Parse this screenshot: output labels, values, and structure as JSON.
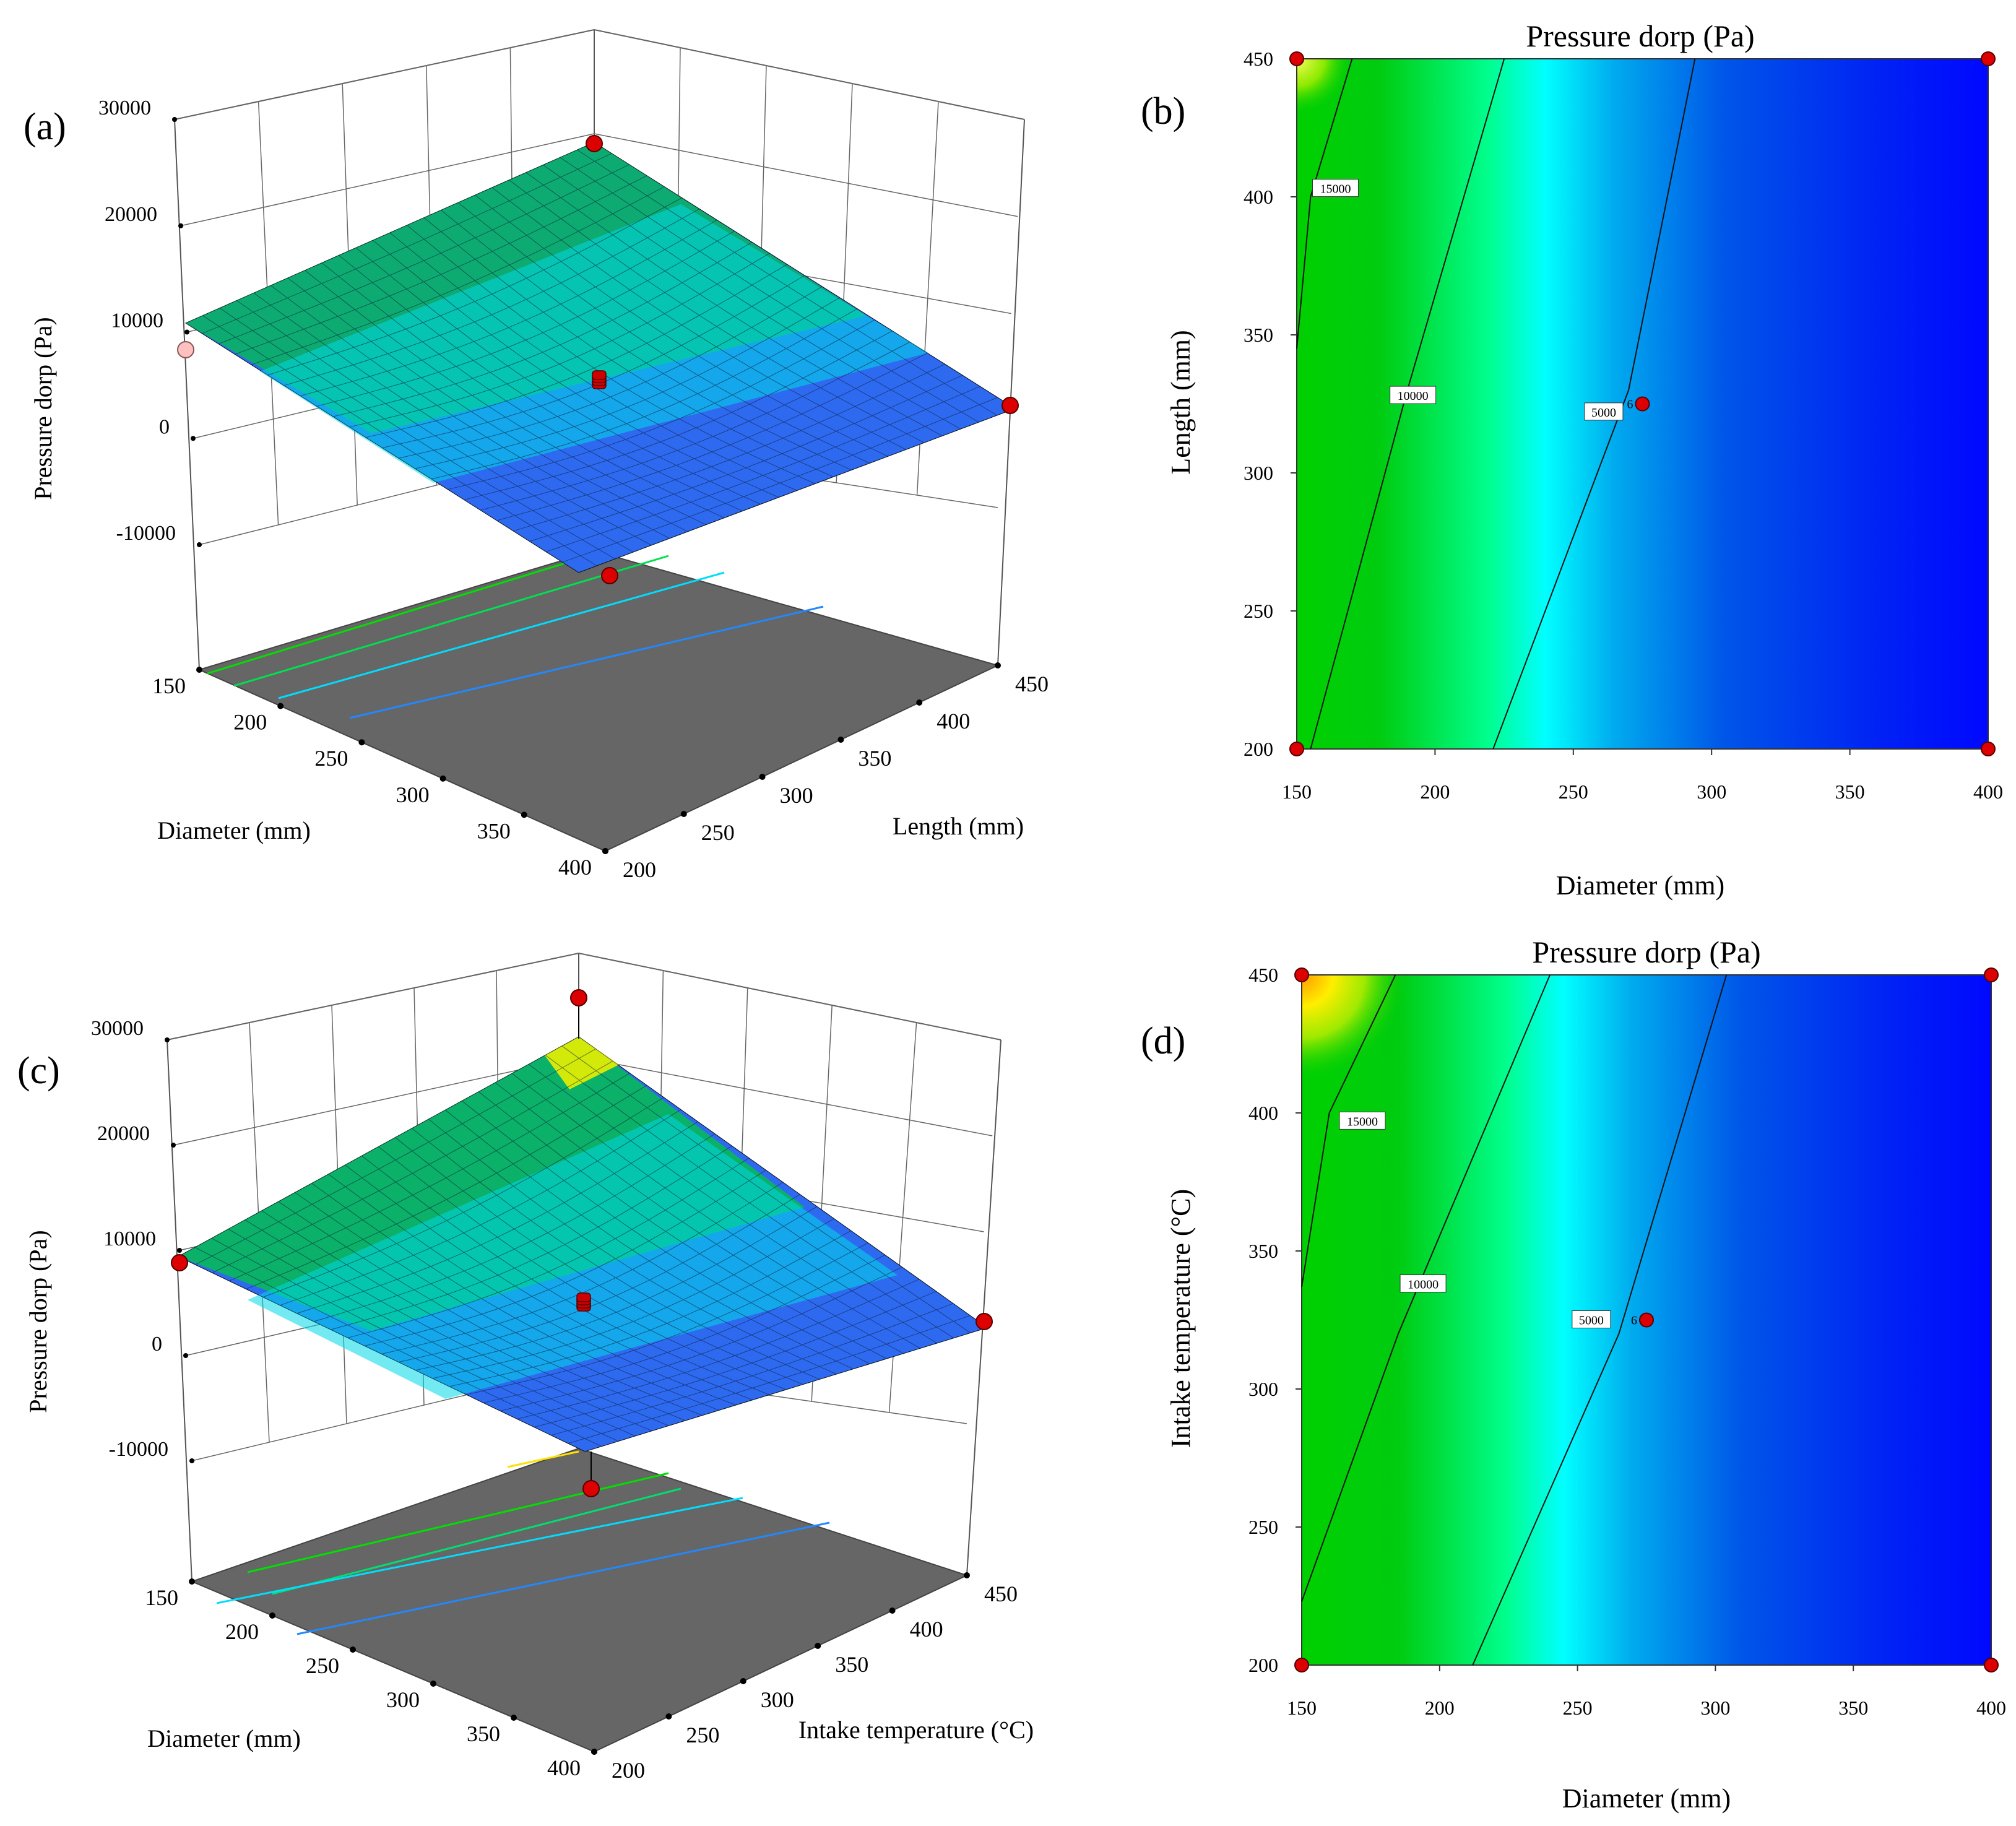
{
  "figure": {
    "panels": [
      "(a)",
      "(b)",
      "(c)",
      "(d)"
    ]
  },
  "chart_data": [
    {
      "panel": "(a)",
      "type": "surface3d",
      "zlabel": "Pressure dorp (Pa)",
      "xlabel": "Diameter (mm)",
      "ylabel": "Length (mm)",
      "x_ticks": [
        150,
        200,
        250,
        300,
        350,
        400
      ],
      "y_ticks": [
        200,
        250,
        300,
        350,
        400,
        450
      ],
      "z_ticks": [
        -10000,
        0,
        10000,
        20000,
        30000
      ],
      "xlim": [
        150,
        400
      ],
      "ylim": [
        200,
        450
      ],
      "zlim": [
        -10000,
        30000
      ],
      "surface_corners": [
        {
          "diameter": 150,
          "length": 200,
          "pressure_drop": 8000
        },
        {
          "diameter": 150,
          "length": 450,
          "pressure_drop": 26000
        },
        {
          "diameter": 400,
          "length": 450,
          "pressure_drop": 2500
        },
        {
          "diameter": 400,
          "length": 200,
          "pressure_drop": -8000
        }
      ],
      "design_points": [
        {
          "diameter": 150,
          "length": 450,
          "pressure_drop": 27000,
          "above_surface": true
        },
        {
          "diameter": 150,
          "length": 200,
          "pressure_drop": 7000,
          "above_surface": false
        },
        {
          "diameter": 400,
          "length": 450,
          "pressure_drop": 2000,
          "above_surface": true
        },
        {
          "diameter": 275,
          "length": 325,
          "pressure_drop": 3500,
          "above_surface": true
        },
        {
          "diameter": 400,
          "length": 200,
          "pressure_drop": -12000,
          "above_surface": false
        }
      ],
      "colors": {
        "low": "#0000ff",
        "mid": "#00ffff",
        "high": "#00dd00",
        "max": "#ffee00",
        "floor": "#666666"
      }
    },
    {
      "panel": "(b)",
      "type": "contour",
      "title": "Pressure dorp (Pa)",
      "xlabel": "Diameter (mm)",
      "ylabel": "Length (mm)",
      "x_ticks": [
        150,
        200,
        250,
        300,
        350,
        400
      ],
      "y_ticks": [
        200,
        250,
        300,
        350,
        400,
        450
      ],
      "xlim": [
        150,
        400
      ],
      "ylim": [
        200,
        450
      ],
      "contours": [
        {
          "level": "15000",
          "points": [
            [
              150,
              345
            ],
            [
              155,
              400
            ],
            [
              170,
              450
            ]
          ]
        },
        {
          "level": "10000",
          "points": [
            [
              155,
              200
            ],
            [
              190,
              330
            ],
            [
              225,
              450
            ]
          ]
        },
        {
          "level": "5000",
          "points": [
            [
              221,
              200
            ],
            [
              270,
              330
            ],
            [
              294,
              450
            ]
          ]
        }
      ],
      "contour_labels": [
        {
          "text": "15000",
          "x": 164,
          "y": 403
        },
        {
          "text": "10000",
          "x": 192,
          "y": 328
        },
        {
          "text": "5000",
          "x": 261,
          "y": 322
        }
      ],
      "center_point": {
        "diameter": 275,
        "length": 325,
        "replicates": "6"
      },
      "corner_points": [
        [
          150,
          200
        ],
        [
          150,
          450
        ],
        [
          400,
          200
        ],
        [
          400,
          450
        ]
      ],
      "colors": {
        "low": "#0000ff",
        "mid": "#00ffff",
        "high": "#00cc00",
        "max": "#ffff00"
      }
    },
    {
      "panel": "(c)",
      "type": "surface3d",
      "zlabel": "Pressure dorp (Pa)",
      "xlabel": "Diameter (mm)",
      "ylabel": "Intake temperature (°C)",
      "x_ticks": [
        150,
        200,
        250,
        300,
        350,
        400
      ],
      "y_ticks": [
        200,
        250,
        300,
        350,
        400,
        450
      ],
      "z_ticks": [
        -10000,
        0,
        10000,
        20000,
        30000
      ],
      "xlim": [
        150,
        400
      ],
      "ylim": [
        200,
        450
      ],
      "zlim": [
        -10000,
        30000
      ],
      "surface_corners": [
        {
          "diameter": 150,
          "intake_temperature": 200,
          "pressure_drop": 8000
        },
        {
          "diameter": 150,
          "intake_temperature": 450,
          "pressure_drop": 28000
        },
        {
          "diameter": 400,
          "intake_temperature": 450,
          "pressure_drop": 0
        },
        {
          "diameter": 400,
          "intake_temperature": 200,
          "pressure_drop": -8000
        }
      ],
      "design_points": [
        {
          "diameter": 150,
          "intake_temperature": 450,
          "pressure_drop": 33000,
          "above_surface": true
        },
        {
          "diameter": 150,
          "intake_temperature": 200,
          "pressure_drop": 7000,
          "above_surface": true
        },
        {
          "diameter": 400,
          "intake_temperature": 450,
          "pressure_drop": 1000,
          "above_surface": true
        },
        {
          "diameter": 275,
          "intake_temperature": 325,
          "pressure_drop": 3500,
          "above_surface": true
        },
        {
          "diameter": 400,
          "intake_temperature": 200,
          "pressure_drop": -12000,
          "above_surface": false
        }
      ],
      "colors": {
        "low": "#0000ff",
        "mid": "#00ffff",
        "high": "#00dd00",
        "max": "#ffee00",
        "floor": "#666666"
      }
    },
    {
      "panel": "(d)",
      "type": "contour",
      "title": "Pressure dorp (Pa)",
      "xlabel": "Diameter (mm)",
      "ylabel": "Intake temperature (°C)",
      "x_ticks": [
        150,
        200,
        250,
        300,
        350,
        400
      ],
      "y_ticks": [
        200,
        250,
        300,
        350,
        400,
        450
      ],
      "xlim": [
        150,
        400
      ],
      "ylim": [
        200,
        450
      ],
      "contours": [
        {
          "level": "15000",
          "points": [
            [
              150,
              337
            ],
            [
              160,
              400
            ],
            [
              184,
              450
            ]
          ]
        },
        {
          "level": "10000",
          "points": [
            [
              150,
              223
            ],
            [
              185,
              320
            ],
            [
              240,
              450
            ]
          ]
        },
        {
          "level": "5000",
          "points": [
            [
              212,
              200
            ],
            [
              265,
              320
            ],
            [
              304,
              450
            ]
          ]
        }
      ],
      "contour_labels": [
        {
          "text": "15000",
          "x": 172,
          "y": 397
        },
        {
          "text": "10000",
          "x": 194,
          "y": 338
        },
        {
          "text": "5000",
          "x": 255,
          "y": 325
        }
      ],
      "center_point": {
        "diameter": 275,
        "intake_temperature": 325,
        "replicates": "6"
      },
      "corner_points": [
        [
          150,
          200
        ],
        [
          150,
          450
        ],
        [
          400,
          200
        ],
        [
          400,
          450
        ]
      ],
      "colors": {
        "low": "#0000ff",
        "mid": "#00ffff",
        "high": "#00cc00",
        "max": "#ffff00"
      }
    }
  ]
}
